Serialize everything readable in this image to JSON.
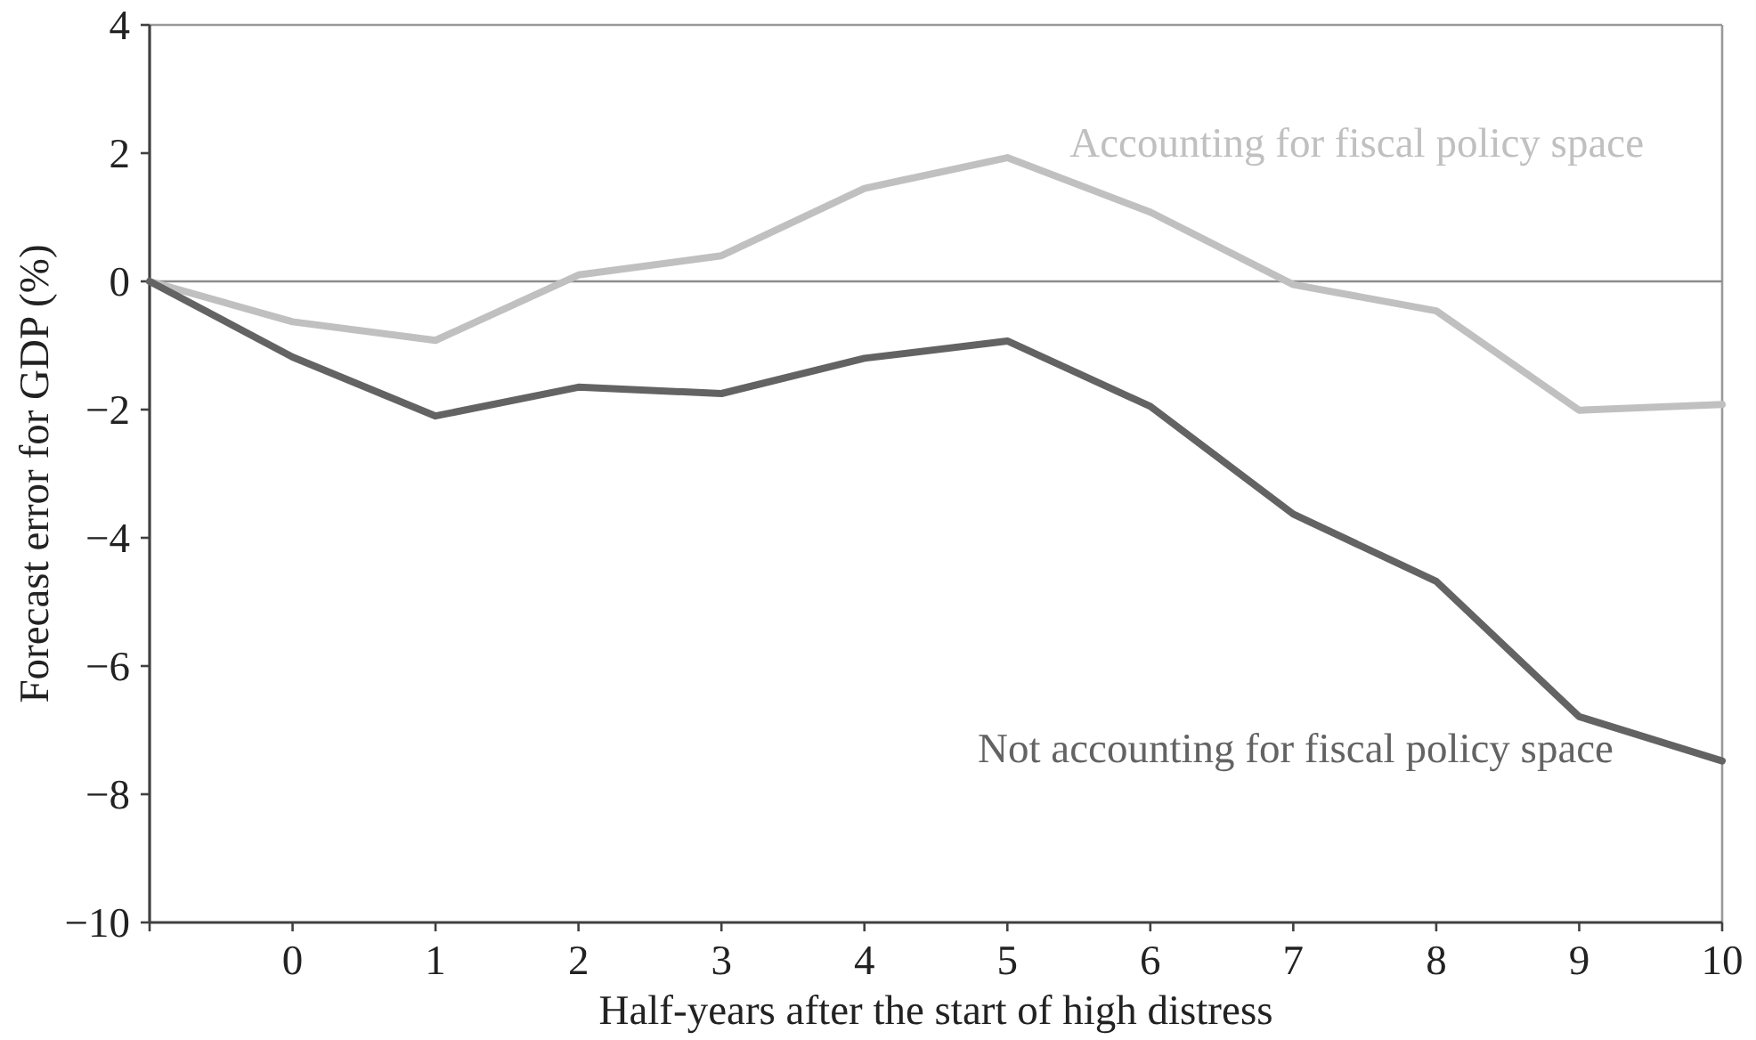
{
  "chart_data": {
    "type": "line",
    "xlabel": "Half-years after the start of high distress",
    "ylabel": "Forecast error for GDP (%)",
    "x": [
      -1,
      0,
      1,
      2,
      3,
      4,
      5,
      6,
      7,
      8,
      9,
      10
    ],
    "xlim": [
      -1,
      10
    ],
    "xticks": [
      {
        "value": -1,
        "label": null
      },
      0,
      1,
      2,
      3,
      4,
      5,
      6,
      7,
      8,
      9,
      10
    ],
    "ylim": [
      -10,
      4
    ],
    "yticks": [
      -10,
      -8,
      -6,
      -4,
      -2,
      0,
      2,
      4
    ],
    "series": [
      {
        "name": "Accounting for fiscal policy space",
        "color": "#c0c0c0",
        "values": [
          0,
          -0.63,
          -0.92,
          0.1,
          0.4,
          1.45,
          1.93,
          1.08,
          -0.05,
          -0.46,
          -2.01,
          -1.92
        ]
      },
      {
        "name": "Not accounting for fiscal policy space",
        "color": "#636363",
        "values": [
          0,
          -1.18,
          -2.1,
          -1.65,
          -1.75,
          -1.2,
          -0.93,
          -1.95,
          -3.63,
          -4.68,
          -6.79,
          -7.48
        ]
      }
    ],
    "ref_lines": [
      {
        "axis": "y",
        "value": 0,
        "color": "#8c8c8c"
      }
    ],
    "grid": false,
    "legend": false,
    "marker": "none",
    "line_style": "solid"
  }
}
